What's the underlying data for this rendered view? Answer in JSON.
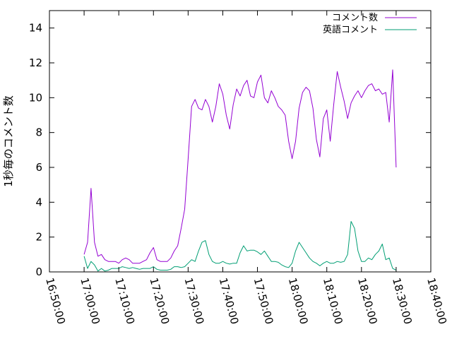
{
  "chart_data": {
    "type": "line",
    "title": "",
    "xlabel": "",
    "ylabel": "1秒毎のコメント数",
    "x_ticks": [
      "16:50:00",
      "17:00:00",
      "17:10:00",
      "17:20:00",
      "17:30:00",
      "17:40:00",
      "17:50:00",
      "18:00:00",
      "18:10:00",
      "18:20:00",
      "18:30:00",
      "18:40:00"
    ],
    "y_ticks": [
      "0",
      "2",
      "4",
      "6",
      "8",
      "10",
      "12",
      "14"
    ],
    "xlim": [
      "16:50:00",
      "18:40:00"
    ],
    "ylim": [
      0,
      15
    ],
    "grid": false,
    "legend_position": "top-right",
    "series": [
      {
        "name": "コメント数",
        "color": "#9400d3",
        "x": [
          "17:00:00",
          "17:01:00",
          "17:02:00",
          "17:03:00",
          "17:04:00",
          "17:05:00",
          "17:06:00",
          "17:07:00",
          "17:08:00",
          "17:09:00",
          "17:10:00",
          "17:11:00",
          "17:12:00",
          "17:13:00",
          "17:14:00",
          "17:15:00",
          "17:16:00",
          "17:17:00",
          "17:18:00",
          "17:19:00",
          "17:20:00",
          "17:21:00",
          "17:22:00",
          "17:23:00",
          "17:24:00",
          "17:25:00",
          "17:26:00",
          "17:27:00",
          "17:28:00",
          "17:29:00",
          "17:30:00",
          "17:31:00",
          "17:32:00",
          "17:33:00",
          "17:34:00",
          "17:35:00",
          "17:36:00",
          "17:37:00",
          "17:38:00",
          "17:39:00",
          "17:40:00",
          "17:41:00",
          "17:42:00",
          "17:43:00",
          "17:44:00",
          "17:45:00",
          "17:46:00",
          "17:47:00",
          "17:48:00",
          "17:49:00",
          "17:50:00",
          "17:51:00",
          "17:52:00",
          "17:53:00",
          "17:54:00",
          "17:55:00",
          "17:56:00",
          "17:57:00",
          "17:58:00",
          "17:59:00",
          "18:00:00",
          "18:01:00",
          "18:02:00",
          "18:03:00",
          "18:04:00",
          "18:05:00",
          "18:06:00",
          "18:07:00",
          "18:08:00",
          "18:09:00",
          "18:10:00",
          "18:11:00",
          "18:12:00",
          "18:13:00",
          "18:14:00",
          "18:15:00",
          "18:16:00",
          "18:17:00",
          "18:18:00",
          "18:19:00",
          "18:20:00",
          "18:21:00",
          "18:22:00",
          "18:23:00",
          "18:24:00",
          "18:25:00",
          "18:26:00",
          "18:27:00",
          "18:28:00",
          "18:29:00",
          "18:30:00"
        ],
        "values": [
          1.0,
          1.7,
          4.8,
          1.7,
          0.9,
          1.0,
          0.7,
          0.6,
          0.6,
          0.6,
          0.5,
          0.7,
          0.8,
          0.7,
          0.5,
          0.5,
          0.5,
          0.6,
          0.7,
          1.1,
          1.4,
          0.7,
          0.6,
          0.6,
          0.6,
          0.8,
          1.2,
          1.5,
          2.5,
          3.6,
          6.5,
          9.5,
          9.9,
          9.4,
          9.3,
          9.9,
          9.5,
          8.6,
          9.5,
          10.8,
          10.2,
          9.0,
          8.2,
          9.6,
          10.5,
          10.1,
          10.7,
          11.0,
          10.1,
          10.0,
          10.9,
          11.3,
          10.0,
          9.7,
          10.4,
          10.0,
          9.5,
          9.3,
          9.0,
          7.5,
          6.5,
          7.5,
          9.4,
          10.3,
          10.6,
          10.4,
          9.4,
          7.6,
          6.6,
          8.8,
          9.3,
          7.5,
          9.6,
          11.5,
          10.6,
          9.8,
          8.8,
          9.7,
          10.1,
          10.4,
          10.0,
          10.4,
          10.7,
          10.8,
          10.4,
          10.5,
          10.2,
          10.3,
          8.6,
          11.6,
          6.0
        ]
      },
      {
        "name": "英語コメント",
        "color": "#009e73",
        "x": [
          "17:00:00",
          "17:01:00",
          "17:02:00",
          "17:03:00",
          "17:04:00",
          "17:05:00",
          "17:06:00",
          "17:07:00",
          "17:08:00",
          "17:09:00",
          "17:10:00",
          "17:11:00",
          "17:12:00",
          "17:13:00",
          "17:14:00",
          "17:15:00",
          "17:16:00",
          "17:17:00",
          "17:18:00",
          "17:19:00",
          "17:20:00",
          "17:21:00",
          "17:22:00",
          "17:23:00",
          "17:24:00",
          "17:25:00",
          "17:26:00",
          "17:27:00",
          "17:28:00",
          "17:29:00",
          "17:30:00",
          "17:31:00",
          "17:32:00",
          "17:33:00",
          "17:34:00",
          "17:35:00",
          "17:36:00",
          "17:37:00",
          "17:38:00",
          "17:39:00",
          "17:40:00",
          "17:41:00",
          "17:42:00",
          "17:43:00",
          "17:44:00",
          "17:45:00",
          "17:46:00",
          "17:47:00",
          "17:48:00",
          "17:49:00",
          "17:50:00",
          "17:51:00",
          "17:52:00",
          "17:53:00",
          "17:54:00",
          "17:55:00",
          "17:56:00",
          "17:57:00",
          "17:58:00",
          "17:59:00",
          "18:00:00",
          "18:01:00",
          "18:02:00",
          "18:03:00",
          "18:04:00",
          "18:05:00",
          "18:06:00",
          "18:07:00",
          "18:08:00",
          "18:09:00",
          "18:10:00",
          "18:11:00",
          "18:12:00",
          "18:13:00",
          "18:14:00",
          "18:15:00",
          "18:16:00",
          "18:17:00",
          "18:18:00",
          "18:19:00",
          "18:20:00",
          "18:21:00",
          "18:22:00",
          "18:23:00",
          "18:24:00",
          "18:25:00",
          "18:26:00",
          "18:27:00",
          "18:28:00",
          "18:29:00",
          "18:30:00"
        ],
        "values": [
          0.9,
          0.2,
          0.6,
          0.4,
          0.05,
          0.2,
          0.05,
          0.1,
          0.2,
          0.2,
          0.2,
          0.3,
          0.25,
          0.2,
          0.25,
          0.2,
          0.15,
          0.2,
          0.2,
          0.2,
          0.3,
          0.15,
          0.1,
          0.1,
          0.1,
          0.15,
          0.3,
          0.3,
          0.25,
          0.3,
          0.5,
          0.7,
          0.6,
          1.2,
          1.7,
          1.8,
          1.0,
          0.6,
          0.5,
          0.5,
          0.6,
          0.5,
          0.45,
          0.5,
          0.5,
          1.1,
          1.5,
          1.2,
          1.25,
          1.25,
          1.15,
          1.0,
          1.2,
          0.9,
          0.6,
          0.6,
          0.55,
          0.4,
          0.3,
          0.25,
          0.5,
          1.2,
          1.7,
          1.4,
          1.1,
          0.8,
          0.6,
          0.5,
          0.35,
          0.5,
          0.6,
          0.5,
          0.5,
          0.6,
          0.55,
          0.6,
          1.0,
          2.9,
          2.5,
          1.2,
          0.6,
          0.6,
          0.8,
          0.7,
          1.0,
          1.2,
          1.6,
          0.7,
          0.8,
          0.2,
          0.1
        ]
      }
    ]
  }
}
